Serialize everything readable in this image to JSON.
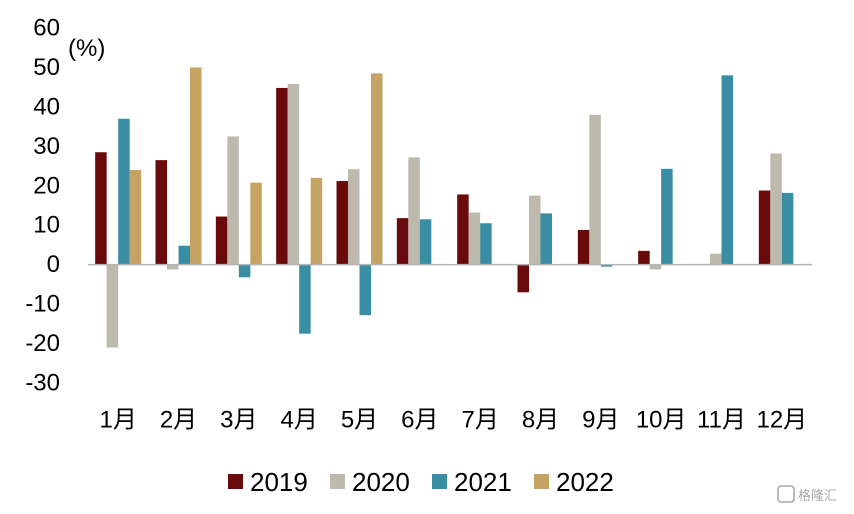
{
  "chart_data": {
    "type": "bar",
    "unit": "(%)",
    "categories": [
      "1月",
      "2月",
      "3月",
      "4月",
      "5月",
      "6月",
      "7月",
      "8月",
      "9月",
      "10月",
      "11月",
      "12月"
    ],
    "ylim": [
      -30,
      60
    ],
    "yticks": [
      60,
      50,
      40,
      30,
      20,
      10,
      0,
      -10,
      -20,
      -30
    ],
    "grid": false,
    "legend_position": "bottom",
    "series": [
      {
        "name": "2019",
        "color": "#6b0a0a",
        "values": [
          28.5,
          26.5,
          12.2,
          44.8,
          21.2,
          11.8,
          17.8,
          -7.0,
          8.8,
          3.5,
          null,
          18.8
        ]
      },
      {
        "name": "2020",
        "color": "#bdbaad",
        "values": [
          -21.0,
          -1.2,
          32.5,
          45.8,
          24.2,
          27.2,
          13.2,
          17.5,
          38.0,
          -1.2,
          2.8,
          28.2
        ]
      },
      {
        "name": "2021",
        "color": "#3a8ea3",
        "values": [
          37.0,
          4.8,
          -3.2,
          -17.5,
          -12.8,
          11.5,
          10.5,
          13.0,
          -0.5,
          24.3,
          48.0,
          18.2
        ]
      },
      {
        "name": "2022",
        "color": "#c5a363",
        "values": [
          24.0,
          50.0,
          20.8,
          22.0,
          48.5,
          null,
          null,
          null,
          null,
          null,
          null,
          null
        ]
      }
    ]
  },
  "watermark": {
    "text": "格隆汇",
    "icon": "logo-icon"
  }
}
